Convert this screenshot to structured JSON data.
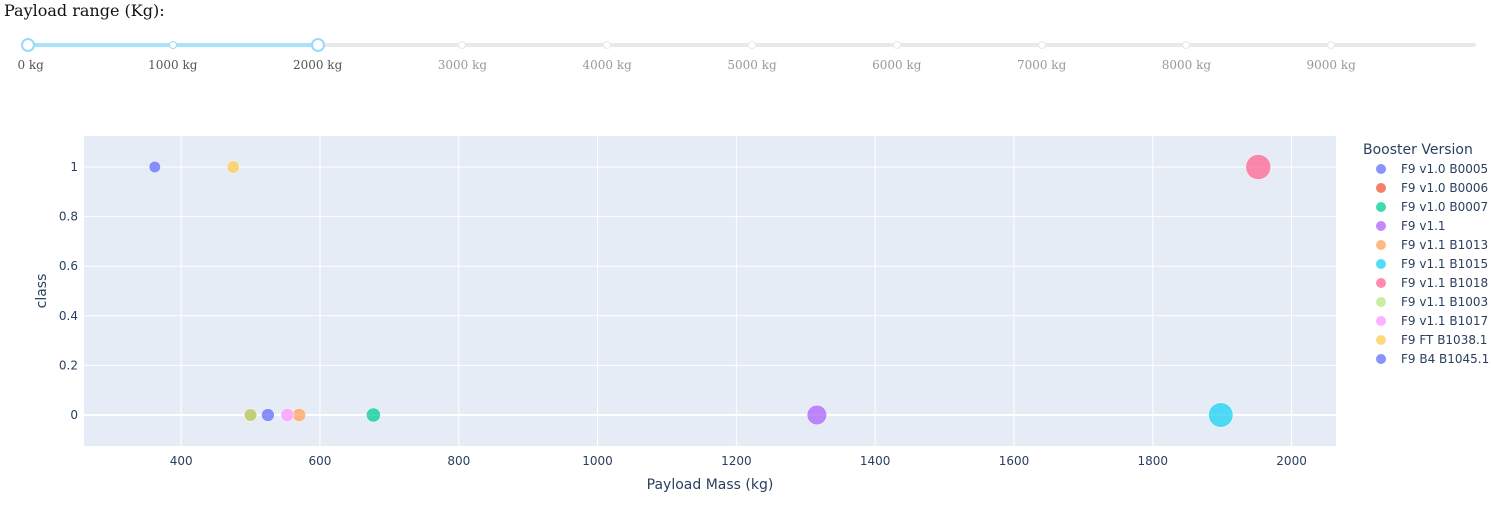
{
  "slider": {
    "label": "Payload range (Kg):",
    "min": 0,
    "max": 10000,
    "selected_range": [
      0,
      2000
    ],
    "marks": [
      "0 kg",
      "1000 kg",
      "2000 kg",
      "3000 kg",
      "4000 kg",
      "5000 kg",
      "6000 kg",
      "7000 kg",
      "8000 kg",
      "9000 kg"
    ],
    "track_color": "#abe2fb",
    "handle_color": "#96dbfa"
  },
  "chart_data": {
    "type": "scatter",
    "xlabel": "Payload Mass (kg)",
    "ylabel": "class",
    "xlim": [
      260,
      2064
    ],
    "ylim": [
      -0.125,
      1.125
    ],
    "xticks": [
      400,
      600,
      800,
      1000,
      1200,
      1400,
      1600,
      1800,
      2000
    ],
    "yticks": [
      0,
      0.2,
      0.4,
      0.6,
      0.8,
      1
    ],
    "ytick_labels": [
      "0",
      "0.2",
      "0.4",
      "0.6",
      "0.8",
      "1"
    ],
    "grid": true,
    "plot_background": "#e5ecf6",
    "legend": {
      "title": "Booster Version",
      "placement": "right"
    },
    "series": [
      {
        "name": "F9 v1.0  B0005",
        "color": "#636efa",
        "points": [
          {
            "x": 525,
            "y": 0
          }
        ]
      },
      {
        "name": "F9 v1.0  B0006",
        "color": "#ef553b",
        "points": [
          {
            "x": 500,
            "y": 0
          }
        ]
      },
      {
        "name": "F9 v1.0  B0007",
        "color": "#00cc96",
        "points": [
          {
            "x": 677,
            "y": 0
          }
        ]
      },
      {
        "name": "F9 v1.1",
        "color": "#ab63fa",
        "points": [
          {
            "x": 1316,
            "y": 0
          }
        ]
      },
      {
        "name": "F9 v1.1 B1013",
        "color": "#ffa15a",
        "points": [
          {
            "x": 570,
            "y": 0
          }
        ]
      },
      {
        "name": "F9 v1.1 B1015",
        "color": "#19d3f3",
        "points": [
          {
            "x": 1898,
            "y": 0
          }
        ]
      },
      {
        "name": "F9 v1.1 B1018",
        "color": "#ff6692",
        "points": [
          {
            "x": 1952,
            "y": 1
          }
        ]
      },
      {
        "name": "F9 v1.1  B1003",
        "color": "#b6e880",
        "points": [
          {
            "x": 500,
            "y": 0
          }
        ]
      },
      {
        "name": "F9 v1.1 B1017",
        "color": "#ff97ff",
        "points": [
          {
            "x": 553,
            "y": 0
          }
        ]
      },
      {
        "name": "F9 FT B1038.1",
        "color": "#fecb52",
        "points": [
          {
            "x": 475,
            "y": 1
          }
        ]
      },
      {
        "name": "F9 B4 B1045.1",
        "color": "#636efa",
        "points": [
          {
            "x": 362,
            "y": 1
          }
        ]
      }
    ]
  }
}
